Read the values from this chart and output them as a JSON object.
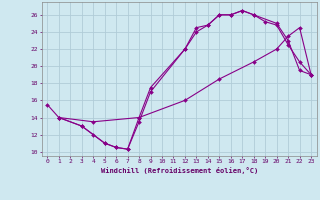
{
  "title": "",
  "xlabel": "Windchill (Refroidissement éolien,°C)",
  "background_color": "#cfe8f0",
  "grid_color": "#b0ccd8",
  "line_color": "#880088",
  "xlim": [
    -0.5,
    23.5
  ],
  "ylim": [
    9.5,
    27.5
  ],
  "xticks": [
    0,
    1,
    2,
    3,
    4,
    5,
    6,
    7,
    8,
    9,
    10,
    11,
    12,
    13,
    14,
    15,
    16,
    17,
    18,
    19,
    20,
    21,
    22,
    23
  ],
  "yticks": [
    10,
    12,
    14,
    16,
    18,
    20,
    22,
    24,
    26
  ],
  "line1_x": [
    0,
    1,
    3,
    4,
    5,
    6,
    7,
    8,
    9,
    12,
    13,
    14,
    15,
    16,
    17,
    18,
    20,
    21,
    22,
    23
  ],
  "line1_y": [
    15.5,
    14.0,
    13.0,
    12.0,
    11.0,
    10.5,
    10.3,
    13.5,
    17.0,
    22.0,
    24.0,
    24.8,
    26.0,
    26.0,
    26.5,
    26.0,
    25.0,
    23.0,
    19.5,
    19.0
  ],
  "line2_x": [
    1,
    3,
    5,
    6,
    7,
    8,
    9,
    12,
    13,
    14,
    15,
    16,
    17,
    18,
    19,
    20,
    21,
    22,
    23
  ],
  "line2_y": [
    14.0,
    13.0,
    11.0,
    10.5,
    10.3,
    14.0,
    17.5,
    22.0,
    24.5,
    24.8,
    26.0,
    26.0,
    26.5,
    26.0,
    25.2,
    24.8,
    22.5,
    20.5,
    19.0
  ],
  "line3_x": [
    1,
    4,
    8,
    12,
    15,
    18,
    20,
    21,
    22,
    23
  ],
  "line3_y": [
    14.0,
    13.5,
    14.0,
    16.0,
    18.5,
    20.5,
    22.0,
    23.5,
    24.5,
    19.0
  ]
}
